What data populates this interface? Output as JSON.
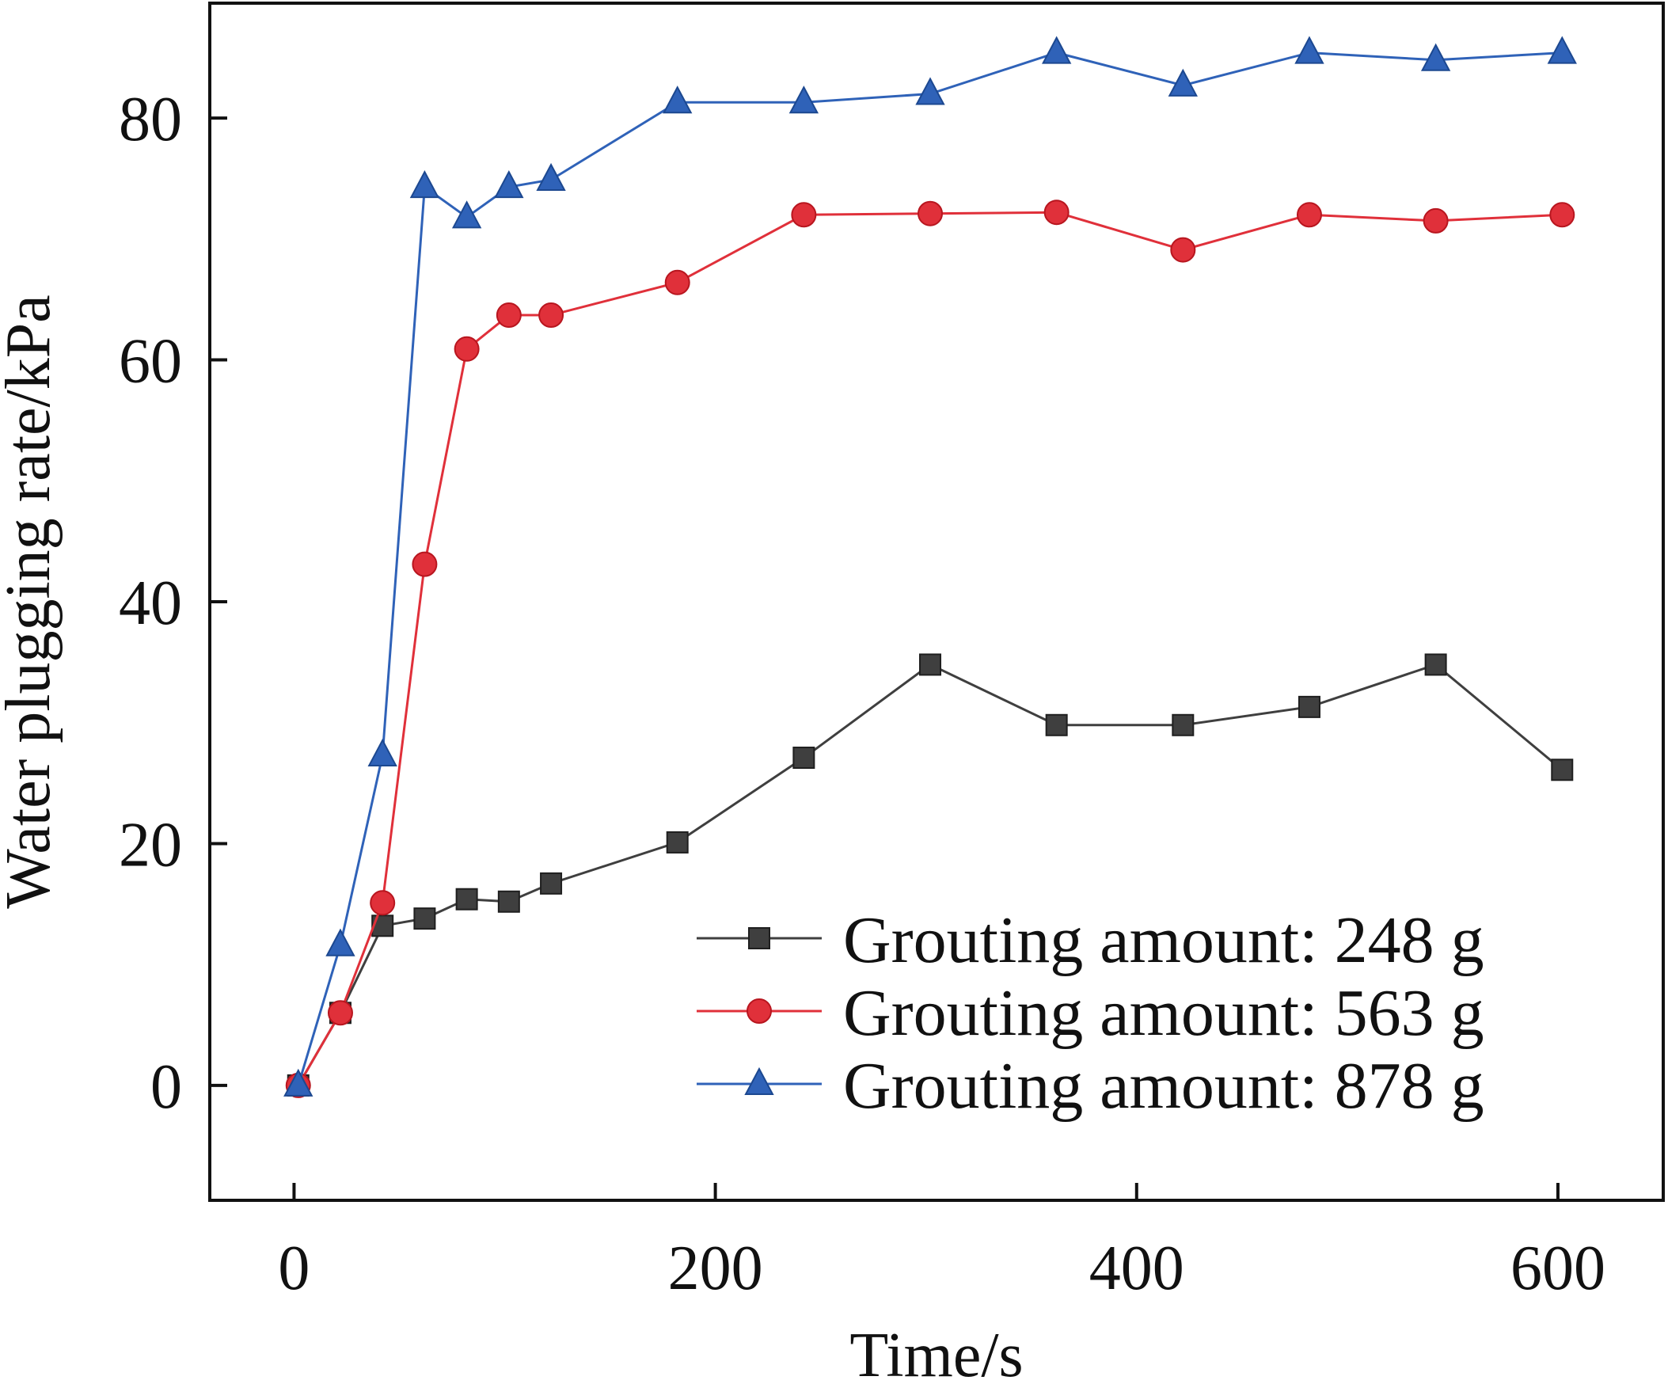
{
  "chart_data": {
    "type": "line",
    "title": "",
    "xlabel": "Time/s",
    "ylabel": "Water plugging rate/kPa",
    "xlim": [
      -40,
      650
    ],
    "ylim": [
      -9.5,
      89.5
    ],
    "xticks": [
      0,
      200,
      400,
      600
    ],
    "yticks": [
      0,
      20,
      40,
      60,
      80
    ],
    "grid": false,
    "legend_position": "bottom-right",
    "series": [
      {
        "name": "Grouting amount: 248 g",
        "color": "#3f3f3f",
        "marker": "square",
        "x": [
          2,
          22,
          42,
          62,
          82,
          102,
          122,
          182,
          242,
          302,
          362,
          422,
          482,
          542,
          602
        ],
        "y": [
          0,
          6,
          13.2,
          13.8,
          15.4,
          15.2,
          16.7,
          20.1,
          27.1,
          34.8,
          29.8,
          29.8,
          31.3,
          34.8,
          26.1
        ]
      },
      {
        "name": "Grouting amount: 563 g",
        "color": "#e0303a",
        "marker": "circle",
        "x": [
          2,
          22,
          42,
          62,
          82,
          102,
          122,
          182,
          242,
          302,
          362,
          422,
          482,
          542,
          602
        ],
        "y": [
          0,
          6,
          15.1,
          43.1,
          60.9,
          63.7,
          63.7,
          66.4,
          72,
          72.1,
          72.2,
          69.1,
          72,
          71.5,
          72
        ]
      },
      {
        "name": "Grouting amount: 878 g",
        "color": "#2f62b8",
        "marker": "triangle",
        "x": [
          2,
          22,
          42,
          62,
          82,
          102,
          122,
          182,
          242,
          302,
          362,
          422,
          482,
          542,
          602
        ],
        "y": [
          0,
          11.6,
          27.3,
          74.3,
          71.8,
          74.3,
          74.9,
          81.3,
          81.3,
          82,
          85.4,
          82.7,
          85.4,
          84.8,
          85.4
        ]
      }
    ]
  }
}
